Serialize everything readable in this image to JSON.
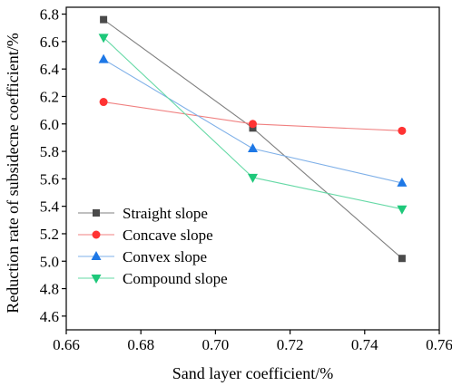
{
  "chart_data": {
    "type": "line",
    "title": "",
    "xlabel": "Sand layer coefficient/%",
    "ylabel": "Reduction rate of subsidecne coefficient/%",
    "xlim": [
      0.66,
      0.76
    ],
    "ylim": [
      4.5,
      6.85
    ],
    "xticks": [
      "0.66",
      "0.68",
      "0.70",
      "0.72",
      "0.74",
      "0.76"
    ],
    "yticks": [
      "4.6",
      "4.8",
      "5.0",
      "5.2",
      "5.4",
      "5.6",
      "5.8",
      "6.0",
      "6.2",
      "6.4",
      "6.6",
      "6.8"
    ],
    "x": [
      0.67,
      0.71,
      0.75
    ],
    "grid": false,
    "legend_position": "center-left",
    "series": [
      {
        "name": "Straight slope",
        "values": [
          6.76,
          5.97,
          5.02
        ],
        "color": "#808080",
        "marker_color": "#4a4a4a",
        "marker": "square"
      },
      {
        "name": "Concave slope",
        "values": [
          6.16,
          6.0,
          5.95
        ],
        "color": "#f08080",
        "marker_color": "#ff3333",
        "marker": "circle"
      },
      {
        "name": "Convex slope",
        "values": [
          6.47,
          5.82,
          5.57
        ],
        "color": "#7fb0e8",
        "marker_color": "#1e78e6",
        "marker": "triangle-up"
      },
      {
        "name": "Compound slope",
        "values": [
          6.63,
          5.61,
          5.38
        ],
        "color": "#66d9a6",
        "marker_color": "#1ec87a",
        "marker": "triangle-down"
      }
    ]
  }
}
